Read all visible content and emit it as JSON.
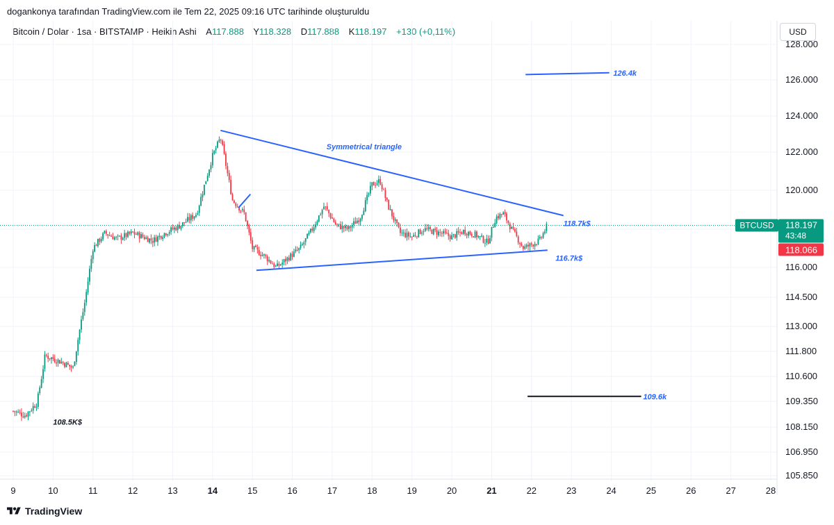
{
  "header": {
    "caption": "dogankonya tarafından TradingView.com ile Tem 22, 2025 09:16 UTC tarihinde oluşturuldu"
  },
  "legend": {
    "symbol": "Bitcoin / Dolar · 1sa · BITSTAMP · Heikin Ashi",
    "o_label": "A",
    "o_value": "117.888",
    "h_label": "Y",
    "h_value": "118.328",
    "l_label": "D",
    "l_value": "117.888",
    "c_label": "K",
    "c_value": "118.197",
    "change": "+130 (+0,11%)"
  },
  "currency_button": "USD",
  "footer": {
    "brand": "TradingView"
  },
  "colors": {
    "up": "#089981",
    "down": "#F23645",
    "line": "#2962FF",
    "accent_text": "#2962FF"
  },
  "chart_data": {
    "type": "candlestick",
    "title": "Bitcoin / Dolar · 1sa · BITSTAMP · Heikin Ashi",
    "x_ticks": [
      "9",
      "10",
      "11",
      "12",
      "13",
      "14",
      "15",
      "16",
      "17",
      "18",
      "19",
      "20",
      "21",
      "22",
      "23",
      "24",
      "25",
      "26",
      "27",
      "28"
    ],
    "x_bold_ticks": [
      "14",
      "21"
    ],
    "y_ticks": [
      {
        "value": 105850,
        "label": "105.850"
      },
      {
        "value": 106950,
        "label": "106.950"
      },
      {
        "value": 108150,
        "label": "108.150"
      },
      {
        "value": 109350,
        "label": "109.350"
      },
      {
        "value": 110600,
        "label": "110.600"
      },
      {
        "value": 111800,
        "label": "111.800"
      },
      {
        "value": 113000,
        "label": "113.000"
      },
      {
        "value": 114500,
        "label": "114.500"
      },
      {
        "value": 116000,
        "label": "116.000"
      },
      {
        "value": 118000,
        "label": "118.000"
      },
      {
        "value": 120000,
        "label": "120.000"
      },
      {
        "value": 122000,
        "label": "122.000"
      },
      {
        "value": 124000,
        "label": "124.000"
      },
      {
        "value": 126000,
        "label": "126.000"
      },
      {
        "value": 128000,
        "label": "128.000"
      }
    ],
    "close_price": 118197,
    "ticker": "BTCUSD",
    "last_price_label": "118.197",
    "countdown": "43:48",
    "bid_label": "118.066",
    "series_keypoints": [
      [
        9.0,
        108900
      ],
      [
        9.3,
        108700
      ],
      [
        9.6,
        109300
      ],
      [
        9.8,
        111600
      ],
      [
        10.2,
        111300
      ],
      [
        10.5,
        111000
      ],
      [
        10.8,
        114300
      ],
      [
        11.0,
        117000
      ],
      [
        11.3,
        117800
      ],
      [
        11.6,
        117500
      ],
      [
        12.0,
        117800
      ],
      [
        12.5,
        117400
      ],
      [
        12.8,
        117800
      ],
      [
        13.2,
        118200
      ],
      [
        13.6,
        118800
      ],
      [
        14.0,
        121800
      ],
      [
        14.2,
        122800
      ],
      [
        14.5,
        119500
      ],
      [
        14.8,
        118800
      ],
      [
        15.0,
        117000
      ],
      [
        15.3,
        116600
      ],
      [
        15.6,
        116000
      ],
      [
        15.9,
        116500
      ],
      [
        16.2,
        117000
      ],
      [
        16.5,
        118000
      ],
      [
        16.8,
        119200
      ],
      [
        17.1,
        118200
      ],
      [
        17.4,
        118000
      ],
      [
        17.7,
        118600
      ],
      [
        18.0,
        120300
      ],
      [
        18.2,
        120500
      ],
      [
        18.4,
        119200
      ],
      [
        18.7,
        117800
      ],
      [
        19.0,
        117600
      ],
      [
        19.3,
        118000
      ],
      [
        19.7,
        117800
      ],
      [
        20.0,
        117600
      ],
      [
        20.3,
        117900
      ],
      [
        20.6,
        117700
      ],
      [
        20.9,
        117300
      ],
      [
        21.1,
        118600
      ],
      [
        21.3,
        118800
      ],
      [
        21.5,
        118000
      ],
      [
        21.8,
        117000
      ],
      [
        22.0,
        117200
      ],
      [
        22.2,
        117400
      ],
      [
        22.4,
        118197
      ]
    ],
    "annotations": [
      {
        "text": "Symmetrical triangle",
        "x": 17.8,
        "y": 122300
      },
      {
        "text": "118.7k$",
        "x": 22.8,
        "y": 118300
      },
      {
        "text": "116.7k$",
        "x": 22.6,
        "y": 116500
      },
      {
        "text": "126.4k",
        "x": 24.05,
        "y": 126400
      },
      {
        "text": "109.6k",
        "x": 24.8,
        "y": 109600
      },
      {
        "text": "108.5K$",
        "x": 10.0,
        "y": 108400
      }
    ],
    "trendlines": [
      {
        "name": "triangle-upper",
        "x1": 14.2,
        "y1": 123200,
        "x2": 22.8,
        "y2": 118700,
        "color": "#2962FF"
      },
      {
        "name": "triangle-lower",
        "x1": 15.1,
        "y1": 115850,
        "x2": 22.4,
        "y2": 116900,
        "color": "#2962FF"
      },
      {
        "name": "target-126k",
        "x1": 21.85,
        "y1": 126300,
        "x2": 23.95,
        "y2": 126400,
        "color": "#2962FF"
      },
      {
        "name": "target-109k",
        "x1": 21.9,
        "y1": 109600,
        "x2": 24.75,
        "y2": 109600,
        "color": "#131722"
      },
      {
        "name": "small-wedge",
        "x1": 14.65,
        "y1": 119100,
        "x2": 14.95,
        "y2": 119800,
        "color": "#2962FF"
      }
    ]
  }
}
